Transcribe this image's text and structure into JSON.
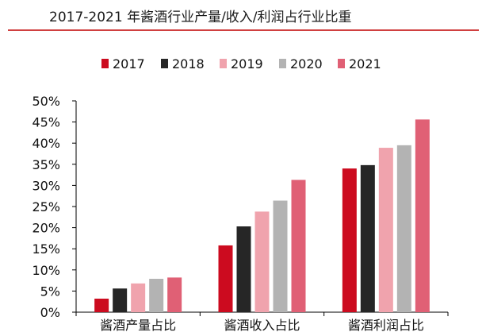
{
  "header": {
    "title": "2017-2021 年酱酒行业产量/收入/利润占行业比重",
    "rule_color": "#c00000"
  },
  "chart_data": {
    "type": "bar",
    "title": "2017-2021 年酱酒行业产量/收入/利润占行业比重",
    "xlabel": "",
    "ylabel": "",
    "categories": [
      "酱酒产量占比",
      "酱酒收入占比",
      "酱酒利润占比"
    ],
    "series": [
      {
        "name": "2017",
        "color": "#cc0b1f",
        "values": [
          3.2,
          15.8,
          34.0
        ]
      },
      {
        "name": "2018",
        "color": "#262626",
        "values": [
          5.6,
          20.3,
          34.8
        ]
      },
      {
        "name": "2019",
        "color": "#f0a3ad",
        "values": [
          6.8,
          23.8,
          38.9
        ]
      },
      {
        "name": "2020",
        "color": "#b3b3b3",
        "values": [
          7.9,
          26.4,
          39.5
        ]
      },
      {
        "name": "2021",
        "color": "#e06075",
        "values": [
          8.2,
          31.3,
          45.6
        ]
      }
    ],
    "ylim": [
      0,
      50
    ],
    "yticks": [
      0,
      5,
      10,
      15,
      20,
      25,
      30,
      35,
      40,
      45,
      50
    ],
    "ytick_format": "%",
    "grid": false,
    "legend_position": "top-center"
  }
}
